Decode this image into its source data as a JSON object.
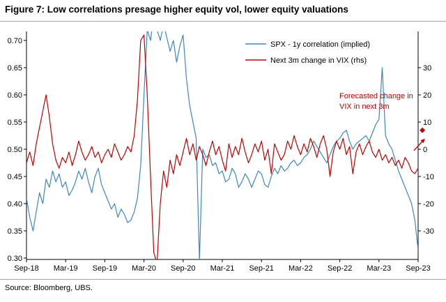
{
  "title": "Figure 7: Low correlations presage higher equity vol, lower equity valuations",
  "source": "Source: Bloomberg, UBS.",
  "annotation": {
    "line1": "Forecasted change in",
    "line2": "VIX in next 3m"
  },
  "colors": {
    "blue": "#3C87C0",
    "red": "#C00000",
    "axis": "#000000",
    "divider": "#A6A6A6"
  },
  "chart_data": {
    "type": "line",
    "grid": false,
    "legend_position": "top-center-right",
    "x_tick_labels": [
      "Sep-18",
      "Mar-19",
      "Sep-19",
      "Mar-20",
      "Sep-20",
      "Mar-21",
      "Sep-21",
      "Mar-22",
      "Sep-22",
      "Mar-23",
      "Sep-23"
    ],
    "left_axis": {
      "min": 0.3,
      "max": 0.7,
      "tick_labels": [
        "0.70",
        "0.65",
        "0.60",
        "0.55",
        "0.50",
        "0.45",
        "0.40",
        "0.35",
        "0.30"
      ]
    },
    "right_axis": {
      "min": -40,
      "max": 40,
      "tick_values": [
        30,
        20,
        10,
        0,
        -10,
        -20,
        -30
      ]
    },
    "series": [
      {
        "name": "SPX - 1y correlation (implied)",
        "axis": "left",
        "color": "#3C87C0",
        "values": [
          0.41,
          0.375,
          0.35,
          0.385,
          0.42,
          0.4,
          0.445,
          0.43,
          0.46,
          0.44,
          0.455,
          0.43,
          0.44,
          0.415,
          0.425,
          0.44,
          0.46,
          0.445,
          0.465,
          0.44,
          0.42,
          0.45,
          0.465,
          0.435,
          0.42,
          0.405,
          0.39,
          0.4,
          0.375,
          0.39,
          0.38,
          0.365,
          0.37,
          0.385,
          0.41,
          0.47,
          0.6,
          0.72,
          0.7,
          0.745,
          0.72,
          0.7,
          0.73,
          0.705,
          0.68,
          0.7,
          0.66,
          0.69,
          0.71,
          0.63,
          0.58,
          0.55,
          0.52,
          0.295,
          0.5,
          0.485,
          0.49,
          0.47,
          0.475,
          0.455,
          0.46,
          0.44,
          0.445,
          0.465,
          0.455,
          0.43,
          0.44,
          0.455,
          0.445,
          0.43,
          0.445,
          0.46,
          0.455,
          0.435,
          0.43,
          0.45,
          0.465,
          0.455,
          0.47,
          0.46,
          0.465,
          0.475,
          0.48,
          0.47,
          0.475,
          0.485,
          0.49,
          0.5,
          0.515,
          0.505,
          0.495,
          0.485,
          0.475,
          0.49,
          0.505,
          0.515,
          0.52,
          0.53,
          0.535,
          0.515,
          0.5,
          0.51,
          0.515,
          0.52,
          0.525,
          0.515,
          0.53,
          0.545,
          0.555,
          0.65,
          0.525,
          0.51,
          0.5,
          0.48,
          0.46,
          0.445,
          0.43,
          0.415,
          0.4,
          0.37,
          0.315
        ]
      },
      {
        "name": "Next 3m change in VIX (rhs)",
        "axis": "right",
        "color": "#C00000",
        "values": [
          -5,
          -1,
          -6,
          2,
          8,
          14,
          20,
          12,
          2,
          -4,
          -7,
          -3,
          -5,
          -1,
          -6,
          -2,
          3,
          -1,
          -4,
          -2,
          1,
          -3,
          -1,
          -5,
          -2,
          0,
          -3,
          2,
          -1,
          -4,
          -2,
          1,
          -1,
          5,
          18,
          40,
          42,
          20,
          -10,
          -38,
          -42,
          -20,
          -8,
          -14,
          -4,
          -9,
          -2,
          -6,
          -1,
          4,
          -2,
          2,
          -4,
          1,
          -2,
          -6,
          -1,
          3,
          -2,
          1,
          -4,
          -8,
          2,
          -3,
          1,
          -2,
          4,
          -1,
          -5,
          -2,
          2,
          -1,
          3,
          -4,
          0,
          -9,
          2,
          -1,
          -4,
          -2,
          3,
          0,
          5,
          1,
          -2,
          2,
          -1,
          4,
          1,
          -3,
          2,
          5,
          0,
          -10,
          -1,
          3,
          0,
          4,
          -2,
          1,
          -9,
          -1,
          2,
          -2,
          1,
          3,
          -1,
          -3,
          0,
          -4,
          -2,
          -5,
          -3,
          -6,
          -4,
          -7,
          -3,
          -5,
          -8,
          -9,
          -7
        ]
      }
    ],
    "forecast": {
      "axis": "right",
      "diamond": {
        "x": 121.3,
        "value": 7
      },
      "arrow_from": {
        "x": 118.7,
        "value": -0.5
      },
      "arrow_to": {
        "x": 121.9,
        "value": 3.7
      }
    }
  }
}
